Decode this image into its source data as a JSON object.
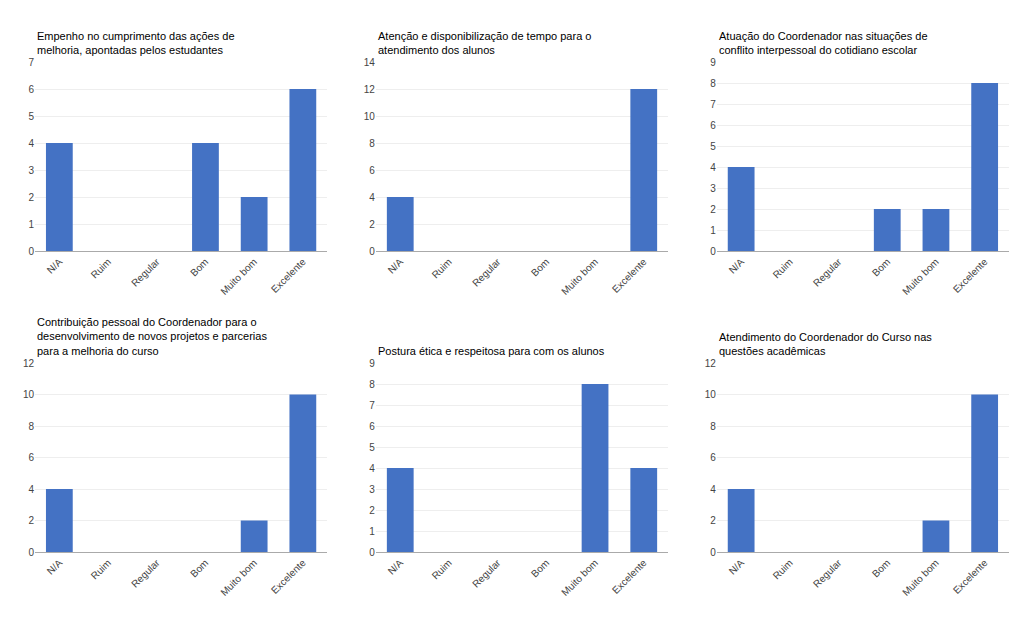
{
  "chart_data": [
    {
      "type": "bar",
      "title": "Empenho no cumprimento das ações de\nmelhoria, apontadas pelos estudantes",
      "categories": [
        "N/A",
        "Ruim",
        "Regular",
        "Bom",
        "Muito bom",
        "Excelente"
      ],
      "values": [
        4,
        0,
        0,
        4,
        2,
        6
      ],
      "color": "#4472C4",
      "ylim": [
        0,
        7
      ],
      "yticks": [
        0,
        1,
        2,
        3,
        4,
        5,
        6,
        7
      ],
      "grid": true
    },
    {
      "type": "bar",
      "title": "Atenção e disponibilização de tempo para o\natendimento dos alunos",
      "categories": [
        "N/A",
        "Ruim",
        "Regular",
        "Bom",
        "Muito bom",
        "Excelente"
      ],
      "values": [
        4,
        0,
        0,
        0,
        0,
        12
      ],
      "color": "#4472C4",
      "ylim": [
        0,
        14
      ],
      "yticks": [
        0,
        2,
        4,
        6,
        8,
        10,
        12,
        14
      ],
      "grid": true
    },
    {
      "type": "bar",
      "title": "Atuação do Coordenador nas situações de\nconflito interpessoal do cotidiano escolar",
      "categories": [
        "N/A",
        "Ruim",
        "Regular",
        "Bom",
        "Muito bom",
        "Excelente"
      ],
      "values": [
        4,
        0,
        0,
        2,
        2,
        8
      ],
      "color": "#4472C4",
      "ylim": [
        0,
        9
      ],
      "yticks": [
        0,
        1,
        2,
        3,
        4,
        5,
        6,
        7,
        8,
        9
      ],
      "grid": true
    },
    {
      "type": "bar",
      "title": "Contribuição pessoal do Coordenador para o\ndesenvolvimento de novos projetos e parcerias\npara a melhoria do curso",
      "categories": [
        "N/A",
        "Ruim",
        "Regular",
        "Bom",
        "Muito bom",
        "Excelente"
      ],
      "values": [
        4,
        0,
        0,
        0,
        2,
        10
      ],
      "color": "#4472C4",
      "ylim": [
        0,
        12
      ],
      "yticks": [
        0,
        2,
        4,
        6,
        8,
        10,
        12
      ],
      "grid": true
    },
    {
      "type": "bar",
      "title": "Postura ética e respeitosa para com os alunos",
      "categories": [
        "N/A",
        "Ruim",
        "Regular",
        "Bom",
        "Muito bom",
        "Excelente"
      ],
      "values": [
        4,
        0,
        0,
        0,
        8,
        4
      ],
      "color": "#4472C4",
      "ylim": [
        0,
        9
      ],
      "yticks": [
        0,
        1,
        2,
        3,
        4,
        5,
        6,
        7,
        8,
        9
      ],
      "grid": true
    },
    {
      "type": "bar",
      "title": "Atendimento do Coordenador do Curso nas\nquestões acadêmicas",
      "categories": [
        "N/A",
        "Ruim",
        "Regular",
        "Bom",
        "Muito bom",
        "Excelente"
      ],
      "values": [
        4,
        0,
        0,
        0,
        2,
        10
      ],
      "color": "#4472C4",
      "ylim": [
        0,
        12
      ],
      "yticks": [
        0,
        2,
        4,
        6,
        8,
        10,
        12
      ],
      "grid": true
    }
  ]
}
